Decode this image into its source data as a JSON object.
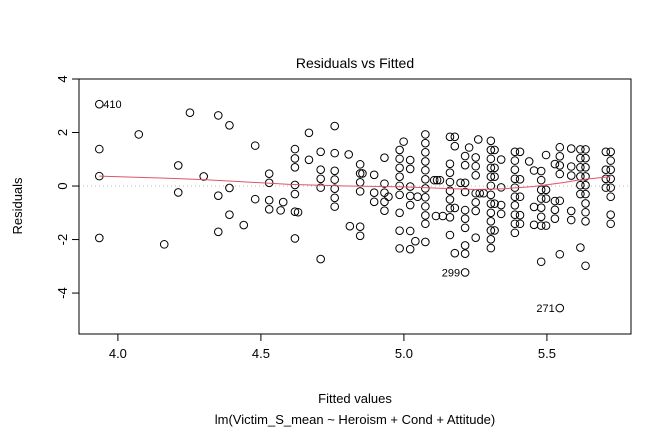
{
  "chart_data": {
    "type": "scatter",
    "title": "Residuals vs Fitted",
    "xlabel": "Fitted values",
    "subtitle": "lm(Victim_S_mean ~ Heroism + Cond + Attitude)",
    "ylabel": "Residuals",
    "xlim": [
      3.864,
      5.794
    ],
    "ylim": [
      -5.53,
      4.0
    ],
    "xticks": [
      4.0,
      4.5,
      5.0,
      5.5
    ],
    "xtick_labels": [
      "4.0",
      "4.5",
      "5.0",
      "5.5"
    ],
    "yticks": [
      4,
      2,
      0,
      -2,
      -4
    ],
    "ytick_labels": [
      "4",
      "2",
      "0",
      "-2",
      "-4"
    ],
    "reference_line": {
      "y": 0,
      "style": "dotted",
      "color": "#bebebe"
    },
    "smoother_color": "#DF536B",
    "smoother": [
      [
        3.935,
        0.37
      ],
      [
        4.15,
        0.3
      ],
      [
        4.3,
        0.24
      ],
      [
        4.45,
        0.15
      ],
      [
        4.6,
        0.06
      ],
      [
        4.8,
        0.0
      ],
      [
        5.0,
        -0.03
      ],
      [
        5.15,
        -0.09
      ],
      [
        5.25,
        -0.13
      ],
      [
        5.35,
        -0.1
      ],
      [
        5.45,
        -0.02
      ],
      [
        5.55,
        0.12
      ],
      [
        5.62,
        0.24
      ],
      [
        5.723,
        0.35
      ]
    ],
    "labeled_points": [
      {
        "label": "410",
        "x": 3.935,
        "y": 3.06,
        "side": "right"
      },
      {
        "label": "299",
        "x": 5.214,
        "y": -3.23,
        "side": "left"
      },
      {
        "label": "271",
        "x": 5.545,
        "y": -4.56,
        "side": "left"
      }
    ],
    "points": [
      [
        3.935,
        3.06
      ],
      [
        3.935,
        1.38
      ],
      [
        3.935,
        0.37
      ],
      [
        3.935,
        -1.94
      ],
      [
        4.073,
        1.93
      ],
      [
        4.162,
        -2.18
      ],
      [
        4.211,
        0.77
      ],
      [
        4.211,
        -0.24
      ],
      [
        4.252,
        2.74
      ],
      [
        4.3,
        0.36
      ],
      [
        4.351,
        2.64
      ],
      [
        4.351,
        -0.36
      ],
      [
        4.351,
        -1.71
      ],
      [
        4.39,
        2.27
      ],
      [
        4.39,
        -0.07
      ],
      [
        4.39,
        -1.07
      ],
      [
        4.44,
        -1.46
      ],
      [
        4.48,
        1.51
      ],
      [
        4.48,
        -0.49
      ],
      [
        4.529,
        0.46
      ],
      [
        4.529,
        0.12
      ],
      [
        4.529,
        -0.53
      ],
      [
        4.529,
        -0.87
      ],
      [
        4.569,
        -0.91
      ],
      [
        4.578,
        -0.6
      ],
      [
        4.619,
        1.38
      ],
      [
        4.619,
        1.03
      ],
      [
        4.619,
        0.7
      ],
      [
        4.619,
        0.04
      ],
      [
        4.619,
        -0.3
      ],
      [
        4.619,
        -0.96
      ],
      [
        4.619,
        -1.96
      ],
      [
        4.63,
        -0.98
      ],
      [
        4.668,
        1.99
      ],
      [
        4.668,
        0.98
      ],
      [
        4.709,
        1.28
      ],
      [
        4.709,
        0.61
      ],
      [
        4.709,
        0.27
      ],
      [
        4.709,
        -0.06
      ],
      [
        4.709,
        -2.73
      ],
      [
        4.758,
        2.24
      ],
      [
        4.758,
        1.23
      ],
      [
        4.758,
        0.57
      ],
      [
        4.758,
        0.24
      ],
      [
        4.758,
        -0.1
      ],
      [
        4.758,
        -0.44
      ],
      [
        4.758,
        -0.77
      ],
      [
        4.807,
        1.18
      ],
      [
        4.811,
        -1.5
      ],
      [
        4.847,
        0.81
      ],
      [
        4.847,
        0.47
      ],
      [
        4.847,
        0.14
      ],
      [
        4.847,
        -0.2
      ],
      [
        4.847,
        -1.52
      ],
      [
        4.847,
        -1.86
      ],
      [
        4.855,
        0.47
      ],
      [
        4.896,
        0.42
      ],
      [
        4.896,
        -0.25
      ],
      [
        4.896,
        -0.59
      ],
      [
        4.932,
        1.06
      ],
      [
        4.932,
        0.09
      ],
      [
        4.932,
        -0.25
      ],
      [
        4.932,
        -0.59
      ],
      [
        4.932,
        -0.92
      ],
      [
        4.946,
        -0.4
      ],
      [
        4.985,
        1.35
      ],
      [
        4.985,
        1.02
      ],
      [
        4.985,
        0.68
      ],
      [
        4.985,
        0.35
      ],
      [
        4.985,
        0.01
      ],
      [
        4.985,
        -0.33
      ],
      [
        4.985,
        -1.0
      ],
      [
        4.985,
        -1.67
      ],
      [
        4.985,
        -2.33
      ],
      [
        4.999,
        1.66
      ],
      [
        5.022,
        0.97
      ],
      [
        5.022,
        0.64
      ],
      [
        5.022,
        -0.02
      ],
      [
        5.022,
        -0.37
      ],
      [
        5.022,
        -0.71
      ],
      [
        5.022,
        -1.68
      ],
      [
        5.022,
        -2.36
      ],
      [
        5.04,
        -2.06
      ],
      [
        5.048,
        -0.4
      ],
      [
        5.075,
        1.93
      ],
      [
        5.075,
        1.6
      ],
      [
        5.075,
        1.26
      ],
      [
        5.075,
        0.92
      ],
      [
        5.075,
        0.59
      ],
      [
        5.075,
        0.25
      ],
      [
        5.075,
        -0.09
      ],
      [
        5.075,
        -0.42
      ],
      [
        5.075,
        -0.76
      ],
      [
        5.075,
        -1.1
      ],
      [
        5.075,
        -1.41
      ],
      [
        5.075,
        -2.09
      ],
      [
        5.106,
        0.22
      ],
      [
        5.116,
        0.22
      ],
      [
        5.126,
        0.22
      ],
      [
        5.112,
        -1.12
      ],
      [
        5.136,
        -1.12
      ],
      [
        5.161,
        1.84
      ],
      [
        5.161,
        0.83
      ],
      [
        5.161,
        0.5
      ],
      [
        5.161,
        0.15
      ],
      [
        5.161,
        -0.18
      ],
      [
        5.161,
        -0.5
      ],
      [
        5.161,
        -0.83
      ],
      [
        5.161,
        -1.17
      ],
      [
        5.161,
        -1.83
      ],
      [
        5.178,
        1.84
      ],
      [
        5.178,
        1.49
      ],
      [
        5.178,
        -0.82
      ],
      [
        5.178,
        -2.51
      ],
      [
        5.198,
        0.12
      ],
      [
        5.214,
        1.12
      ],
      [
        5.214,
        0.78
      ],
      [
        5.214,
        0.12
      ],
      [
        5.214,
        -0.22
      ],
      [
        5.214,
        -0.9
      ],
      [
        5.214,
        -1.22
      ],
      [
        5.214,
        -1.56
      ],
      [
        5.214,
        -2.22
      ],
      [
        5.214,
        -2.53
      ],
      [
        5.214,
        -3.23
      ],
      [
        5.228,
        1.44
      ],
      [
        5.251,
        1.07
      ],
      [
        5.251,
        0.74
      ],
      [
        5.251,
        0.4
      ],
      [
        5.251,
        -0.27
      ],
      [
        5.251,
        -0.61
      ],
      [
        5.251,
        -0.93
      ],
      [
        5.251,
        -1.93
      ],
      [
        5.26,
        1.74
      ],
      [
        5.265,
        -0.27
      ],
      [
        5.279,
        -0.27
      ],
      [
        5.304,
        1.69
      ],
      [
        5.304,
        1.35
      ],
      [
        5.304,
        1.02
      ],
      [
        5.304,
        0.68
      ],
      [
        5.304,
        0.35
      ],
      [
        5.304,
        0.01
      ],
      [
        5.304,
        -0.33
      ],
      [
        5.304,
        -0.66
      ],
      [
        5.304,
        -1.0
      ],
      [
        5.304,
        -1.32
      ],
      [
        5.304,
        -1.66
      ],
      [
        5.304,
        -1.99
      ],
      [
        5.304,
        -2.32
      ],
      [
        5.317,
        1.35
      ],
      [
        5.317,
        0.68
      ],
      [
        5.317,
        0.35
      ],
      [
        5.317,
        -0.66
      ],
      [
        5.317,
        -1.66
      ],
      [
        5.34,
        0.99
      ],
      [
        5.34,
        -0.05
      ],
      [
        5.34,
        -0.71
      ],
      [
        5.34,
        -1.04
      ],
      [
        5.388,
        1.28
      ],
      [
        5.388,
        0.95
      ],
      [
        5.388,
        0.61
      ],
      [
        5.388,
        0.27
      ],
      [
        5.388,
        -0.06
      ],
      [
        5.388,
        -0.4
      ],
      [
        5.388,
        -0.72
      ],
      [
        5.388,
        -1.07
      ],
      [
        5.388,
        -1.41
      ],
      [
        5.388,
        -1.75
      ],
      [
        5.406,
        1.28
      ],
      [
        5.406,
        0.25
      ],
      [
        5.406,
        -0.4
      ],
      [
        5.406,
        -1.09
      ],
      [
        5.406,
        -1.41
      ],
      [
        5.438,
        0.92
      ],
      [
        5.455,
        0.58
      ],
      [
        5.455,
        -0.78
      ],
      [
        5.455,
        -1.45
      ],
      [
        5.48,
        0.56
      ],
      [
        5.48,
        0.22
      ],
      [
        5.48,
        -0.14
      ],
      [
        5.48,
        -0.47
      ],
      [
        5.48,
        -0.81
      ],
      [
        5.48,
        -1.15
      ],
      [
        5.48,
        -1.48
      ],
      [
        5.48,
        -2.83
      ],
      [
        5.497,
        1.16
      ],
      [
        5.497,
        -0.14
      ],
      [
        5.497,
        -0.47
      ],
      [
        5.497,
        -1.48
      ],
      [
        5.528,
        0.82
      ],
      [
        5.528,
        -0.56
      ],
      [
        5.528,
        -0.89
      ],
      [
        5.528,
        -1.22
      ],
      [
        5.545,
        1.45
      ],
      [
        5.545,
        1.11
      ],
      [
        5.545,
        0.77
      ],
      [
        5.545,
        0.45
      ],
      [
        5.545,
        -0.55
      ],
      [
        5.545,
        -2.55
      ],
      [
        5.545,
        -4.56
      ],
      [
        5.585,
        1.4
      ],
      [
        5.585,
        0.73
      ],
      [
        5.585,
        0.39
      ],
      [
        5.585,
        -0.93
      ],
      [
        5.585,
        -1.27
      ],
      [
        5.617,
        1.37
      ],
      [
        5.617,
        1.04
      ],
      [
        5.617,
        0.7
      ],
      [
        5.617,
        0.36
      ],
      [
        5.617,
        0.03
      ],
      [
        5.617,
        -0.3
      ],
      [
        5.617,
        -2.3
      ],
      [
        5.635,
        1.37
      ],
      [
        5.635,
        1.04
      ],
      [
        5.635,
        0.7
      ],
      [
        5.635,
        0.36
      ],
      [
        5.635,
        0.03
      ],
      [
        5.635,
        -0.3
      ],
      [
        5.635,
        -0.65
      ],
      [
        5.635,
        -0.98
      ],
      [
        5.635,
        -1.32
      ],
      [
        5.635,
        -2.98
      ],
      [
        5.706,
        1.28
      ],
      [
        5.706,
        0.61
      ],
      [
        5.706,
        0.27
      ],
      [
        5.706,
        -0.06
      ],
      [
        5.723,
        1.28
      ],
      [
        5.723,
        0.95
      ],
      [
        5.723,
        0.61
      ],
      [
        5.723,
        0.27
      ],
      [
        5.723,
        -0.06
      ],
      [
        5.723,
        -0.4
      ],
      [
        5.723,
        -1.07
      ],
      [
        5.723,
        -1.41
      ]
    ]
  }
}
